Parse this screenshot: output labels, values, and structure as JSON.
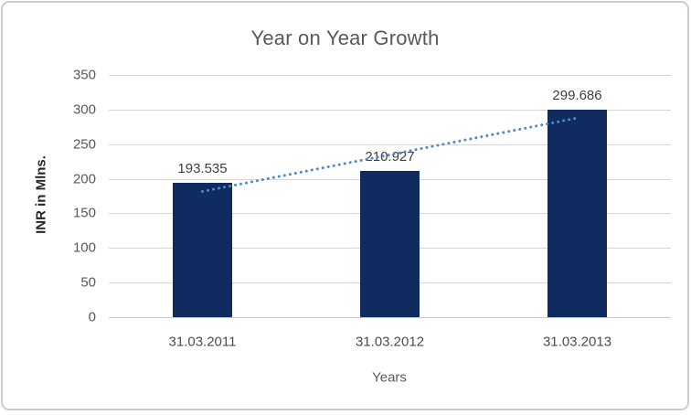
{
  "chart_data": {
    "type": "bar",
    "title": "Year on Year Growth",
    "categories": [
      "31.03.2011",
      "31.03.2012",
      "31.03.2013"
    ],
    "values": [
      193.535,
      210.927,
      299.686
    ],
    "data_labels": [
      "193.535",
      "210.927",
      "299.686"
    ],
    "xlabel": "Years",
    "ylabel": "INR in Mlns.",
    "ylim": [
      0,
      350
    ],
    "yticks": [
      0,
      50,
      100,
      150,
      200,
      250,
      300,
      350
    ],
    "grid": true,
    "legend": "none",
    "trendline": {
      "type": "linear",
      "style": "dotted"
    },
    "colors": {
      "bar": "#0f2b60",
      "trendline": "#5089c9",
      "title": "#595959",
      "tick_labels": "#595959",
      "category_labels": "#4d4d4d",
      "data_labels": "#3f3f3f",
      "y_axis_title": "#262626",
      "x_axis_title": "#595959",
      "gridline": "#d6d6d6",
      "axis_line": "#c9c9c9",
      "frame_border": "#cccccc",
      "background": "#ffffff"
    }
  }
}
